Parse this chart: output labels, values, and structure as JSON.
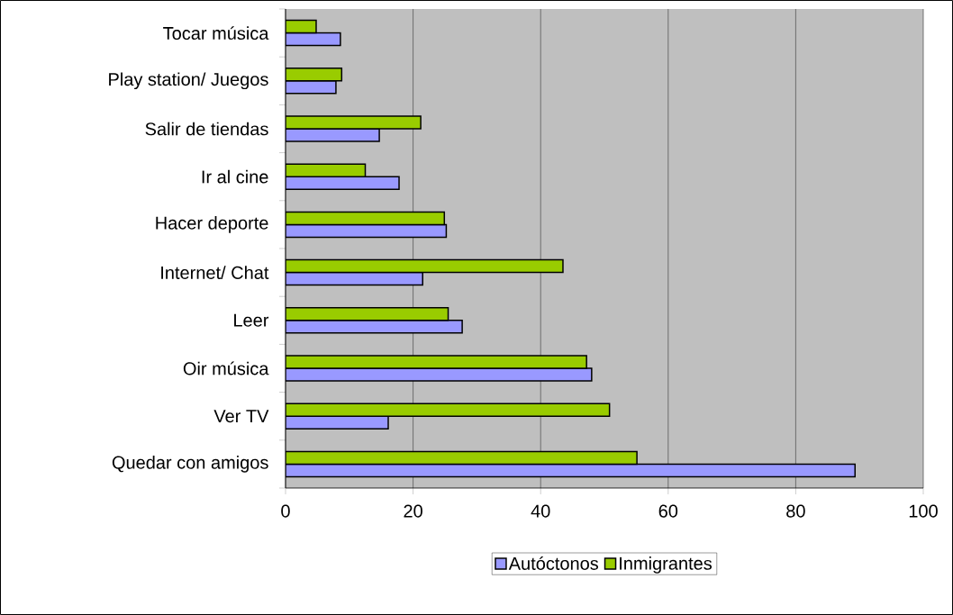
{
  "chart_data": {
    "type": "bar",
    "orientation": "horizontal",
    "categories": [
      "Tocar música",
      "Play station/ Juegos",
      "Salir de tiendas",
      "Ir al cine",
      "Hacer deporte",
      "Internet/ Chat",
      "Leer",
      "Oir música",
      "Ver TV",
      "Quedar con amigos"
    ],
    "series": [
      {
        "name": "Autóctonos",
        "color": "#9999ff",
        "values": [
          8.6,
          7.9,
          14.7,
          17.8,
          25.2,
          21.5,
          27.7,
          48.0,
          16.1,
          89.3
        ]
      },
      {
        "name": "Inmigrantes",
        "color": "#99cc00",
        "values": [
          4.8,
          8.8,
          21.2,
          12.5,
          24.9,
          43.5,
          25.5,
          47.2,
          50.8,
          55.1
        ]
      }
    ],
    "xlim": [
      0,
      100
    ],
    "xticks": [
      0,
      20,
      40,
      60,
      80,
      100
    ],
    "grid": "x",
    "legend": "bottom"
  }
}
